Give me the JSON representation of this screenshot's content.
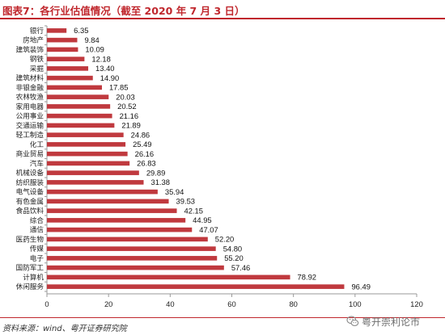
{
  "header": {
    "title": "图表7：各行业估值情况（截至 2020 年 7 月 3 日）",
    "title_color": "#c0272d"
  },
  "footer": {
    "source": "资料来源：wind、粤开证券研究院",
    "watermark_text": "粤开崇利论市",
    "watermark_icon": "wechat-icon"
  },
  "chart_data": {
    "type": "bar",
    "orientation": "horizontal",
    "categories": [
      "银行",
      "房地产",
      "建筑装饰",
      "钢铁",
      "采掘",
      "建筑材料",
      "非银金融",
      "农林牧渔",
      "家用电器",
      "公用事业",
      "交通运输",
      "轻工制造",
      "化工",
      "商业贸易",
      "汽车",
      "机械设备",
      "纺织服装",
      "电气设备",
      "有色金属",
      "食品饮料",
      "综合",
      "通信",
      "医药生物",
      "传媒",
      "电子",
      "国防军工",
      "计算机",
      "休闲服务"
    ],
    "values": [
      6.35,
      9.84,
      10.09,
      12.18,
      13.4,
      14.9,
      17.85,
      20.03,
      20.52,
      21.16,
      21.89,
      24.86,
      25.49,
      26.16,
      26.83,
      29.89,
      31.38,
      35.94,
      39.53,
      42.15,
      44.95,
      47.07,
      52.2,
      54.8,
      55.2,
      57.46,
      78.92,
      96.49
    ],
    "value_labels": [
      "6.35",
      "9.84",
      "10.09",
      "12.18",
      "13.40",
      "14.90",
      "17.85",
      "20.03",
      "20.52",
      "21.16",
      "21.89",
      "24.86",
      "25.49",
      "26.16",
      "26.83",
      "29.89",
      "31.38",
      "35.94",
      "39.53",
      "42.15",
      "44.95",
      "47.07",
      "52.20",
      "54.80",
      "55.20",
      "57.46",
      "78.92",
      "96.49"
    ],
    "xlim": [
      0,
      120
    ],
    "xticks": [
      "0",
      "20",
      "40",
      "60",
      "80",
      "100",
      "120"
    ],
    "xtick_values": [
      0,
      20,
      40,
      60,
      80,
      100,
      120
    ],
    "grid": false,
    "legend": "none",
    "bar_color": "#c0393e"
  }
}
